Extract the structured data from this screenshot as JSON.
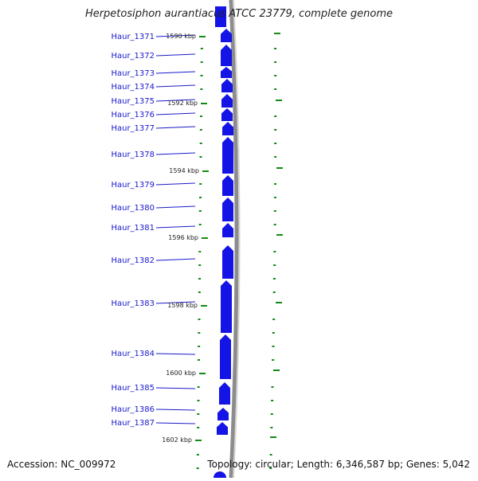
{
  "title": "Herpetosiphon aurantiacus ATCC 23779, complete genome",
  "footer": {
    "accession": "Accession: NC_009972",
    "topology": "Topology: circular; Length: 6,346,587 bp; Genes: 5,042"
  },
  "colors": {
    "gene": "#1414e6",
    "label": "#1a1acc",
    "tick": "#138a13",
    "backbone": "#8c8c8c"
  },
  "genes": [
    {
      "label": "Haur_1371"
    },
    {
      "label": "Haur_1372"
    },
    {
      "label": "Haur_1373"
    },
    {
      "label": "Haur_1374"
    },
    {
      "label": "Haur_1375"
    },
    {
      "label": "Haur_1376"
    },
    {
      "label": "Haur_1377"
    },
    {
      "label": "Haur_1378"
    },
    {
      "label": "Haur_1379"
    },
    {
      "label": "Haur_1380"
    },
    {
      "label": "Haur_1381"
    },
    {
      "label": "Haur_1382"
    },
    {
      "label": "Haur_1383"
    },
    {
      "label": "Haur_1384"
    },
    {
      "label": "Haur_1385"
    },
    {
      "label": "Haur_1386"
    },
    {
      "label": "Haur_1387"
    }
  ],
  "scale_labels": [
    "1590 kbp",
    "1592 kbp",
    "1594 kbp",
    "1596 kbp",
    "1598 kbp",
    "1600 kbp",
    "1602 kbp"
  ]
}
